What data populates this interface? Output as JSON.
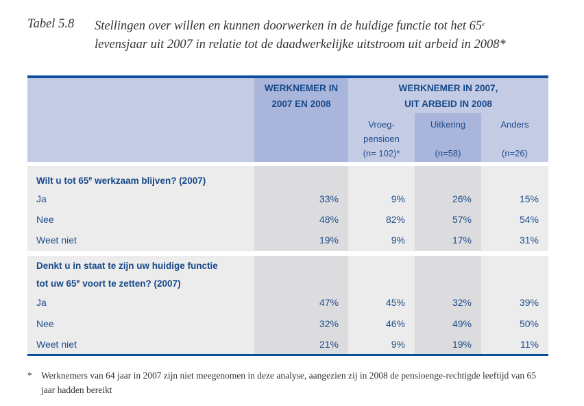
{
  "title": {
    "number": "Tabel 5.8",
    "text_before_sup": "Stellingen over willen en kunnen doorwerken in de huidige functie tot het 65",
    "sup": "e",
    "text_after_sup": "levensjaar uit 2007 in relatie tot de daadwerkelijke uitstroom uit arbeid in 2008*"
  },
  "header": {
    "col1": {
      "line1": "WERKNEMER IN",
      "line2": "2007 EN 2008"
    },
    "group": {
      "line1": "WERKNEMER IN 2007,",
      "line2": "UIT ARBEID IN 2008"
    },
    "sub": [
      {
        "line1": "Vroeg-",
        "line2": "pensioen",
        "n": "(n= 102)*"
      },
      {
        "line1": "Uitkering",
        "line2": "",
        "n": "(n=58)"
      },
      {
        "line1": "Anders",
        "line2": "",
        "n": "(n=26)"
      }
    ]
  },
  "sections": [
    {
      "question_a": "Wilt u tot 65",
      "sup": "e",
      "question_b": " werkzaam blijven? (2007)",
      "rows": [
        {
          "label": "Ja",
          "values": [
            "33%",
            "9%",
            "26%",
            "15%"
          ]
        },
        {
          "label": "Nee",
          "values": [
            "48%",
            "82%",
            "57%",
            "54%"
          ]
        },
        {
          "label": "Weet niet",
          "values": [
            "19%",
            "9%",
            "17%",
            "31%"
          ]
        }
      ]
    },
    {
      "question_line1": "Denkt u in staat te zijn uw huidige functie",
      "question_a": "tot uw 65",
      "sup": "e",
      "question_b": " voort te zetten? (2007)",
      "rows": [
        {
          "label": "Ja",
          "values": [
            "47%",
            "45%",
            "32%",
            "39%"
          ]
        },
        {
          "label": "Nee",
          "values": [
            "32%",
            "46%",
            "49%",
            "50%"
          ]
        },
        {
          "label": "Weet niet",
          "values": [
            "21%",
            "9%",
            "19%",
            "11%"
          ]
        }
      ]
    }
  ],
  "footnote": {
    "marker": "*",
    "text": "Werknemers van 64 jaar in 2007 zijn niet meegenomen in deze analyse, aangezien zij in 2008 de pensioenge-rechtigde leeftijd van 65 jaar hadden bereikt"
  },
  "colors": {
    "accent": "#0b4f9c",
    "header_bg": "#c4cbe4",
    "header_dark": "#a9b5da",
    "body_bg": "#ececec",
    "body_dark": "#dcdcde"
  }
}
